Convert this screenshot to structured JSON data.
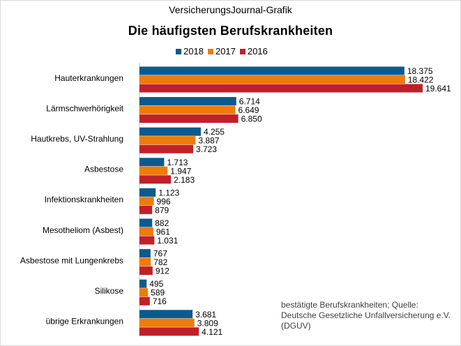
{
  "header": {
    "source": "VersicherungsJournal-Grafik",
    "title": "Die häufigsten Berufskrankheiten"
  },
  "note": "bestätigte Berufskrankheiten; Quelle: Deutsche Gesetzliche Unfallversicherung e.V. (DGUV)",
  "chart_data": {
    "type": "bar",
    "orientation": "horizontal",
    "title": "Die häufigsten Berufskrankheiten",
    "xlabel": "",
    "ylabel": "",
    "xlim": [
      0,
      19641
    ],
    "grid": false,
    "legend_position": "top",
    "categories": [
      "Hauterkrankungen",
      "Lärmschwerhörigkeit",
      "Hautkrebs, UV-Strahlung",
      "Asbestose",
      "Infektionskrankheiten",
      "Mesotheliom (Asbest)",
      "Asbestose mit Lungenkrebs",
      "Silikose",
      "übrige Erkrankungen"
    ],
    "series": [
      {
        "name": "2018",
        "color": "#0b5a8f",
        "values": [
          18375,
          6714,
          4255,
          1713,
          1123,
          882,
          767,
          495,
          3681
        ],
        "labels": [
          "18.375",
          "6.714",
          "4.255",
          "1.713",
          "1.123",
          "882",
          "767",
          "495",
          "3.681"
        ]
      },
      {
        "name": "2017",
        "color": "#ef7b0a",
        "values": [
          18422,
          6649,
          3887,
          1947,
          996,
          961,
          782,
          589,
          3809
        ],
        "labels": [
          "18.422",
          "6.649",
          "3.887",
          "1.947",
          "996",
          "961",
          "782",
          "589",
          "3.809"
        ]
      },
      {
        "name": "2016",
        "color": "#c0202a",
        "values": [
          19641,
          6850,
          3723,
          2183,
          879,
          1031,
          912,
          716,
          4121
        ],
        "labels": [
          "19.641",
          "6.850",
          "3.723",
          "2.183",
          "879",
          "1.031",
          "912",
          "716",
          "4.121"
        ]
      }
    ]
  }
}
